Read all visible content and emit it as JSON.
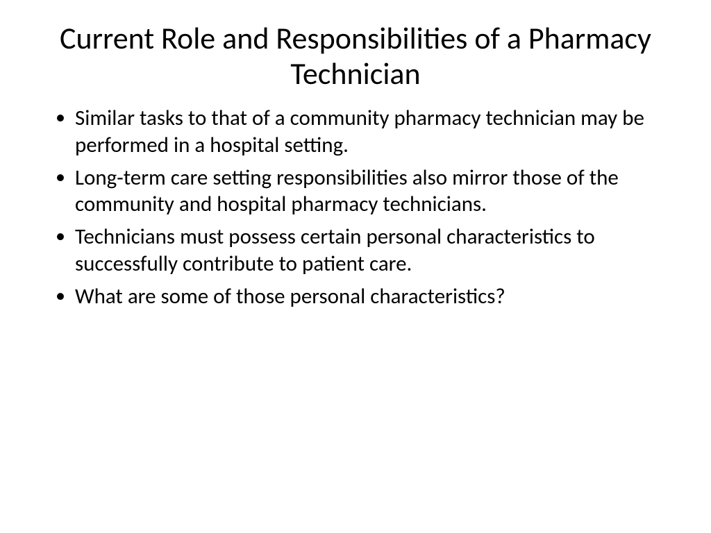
{
  "slide": {
    "title": "Current Role and Responsibilities of a Pharmacy Technician",
    "bullets": [
      "Similar tasks to that of a community pharmacy technician may be performed in a hospital setting.",
      "Long-term care setting responsibilities also mirror those of the community and hospital pharmacy technicians.",
      "Technicians must possess certain personal characteristics to successfully contribute to patient care.",
      "What are some of those personal characteristics?"
    ],
    "styling": {
      "background_color": "#ffffff",
      "text_color": "#000000",
      "title_fontsize": 44,
      "title_fontweight": 400,
      "title_align": "center",
      "body_fontsize": 31,
      "font_family": "Calibri",
      "bullet_char": "•"
    }
  }
}
